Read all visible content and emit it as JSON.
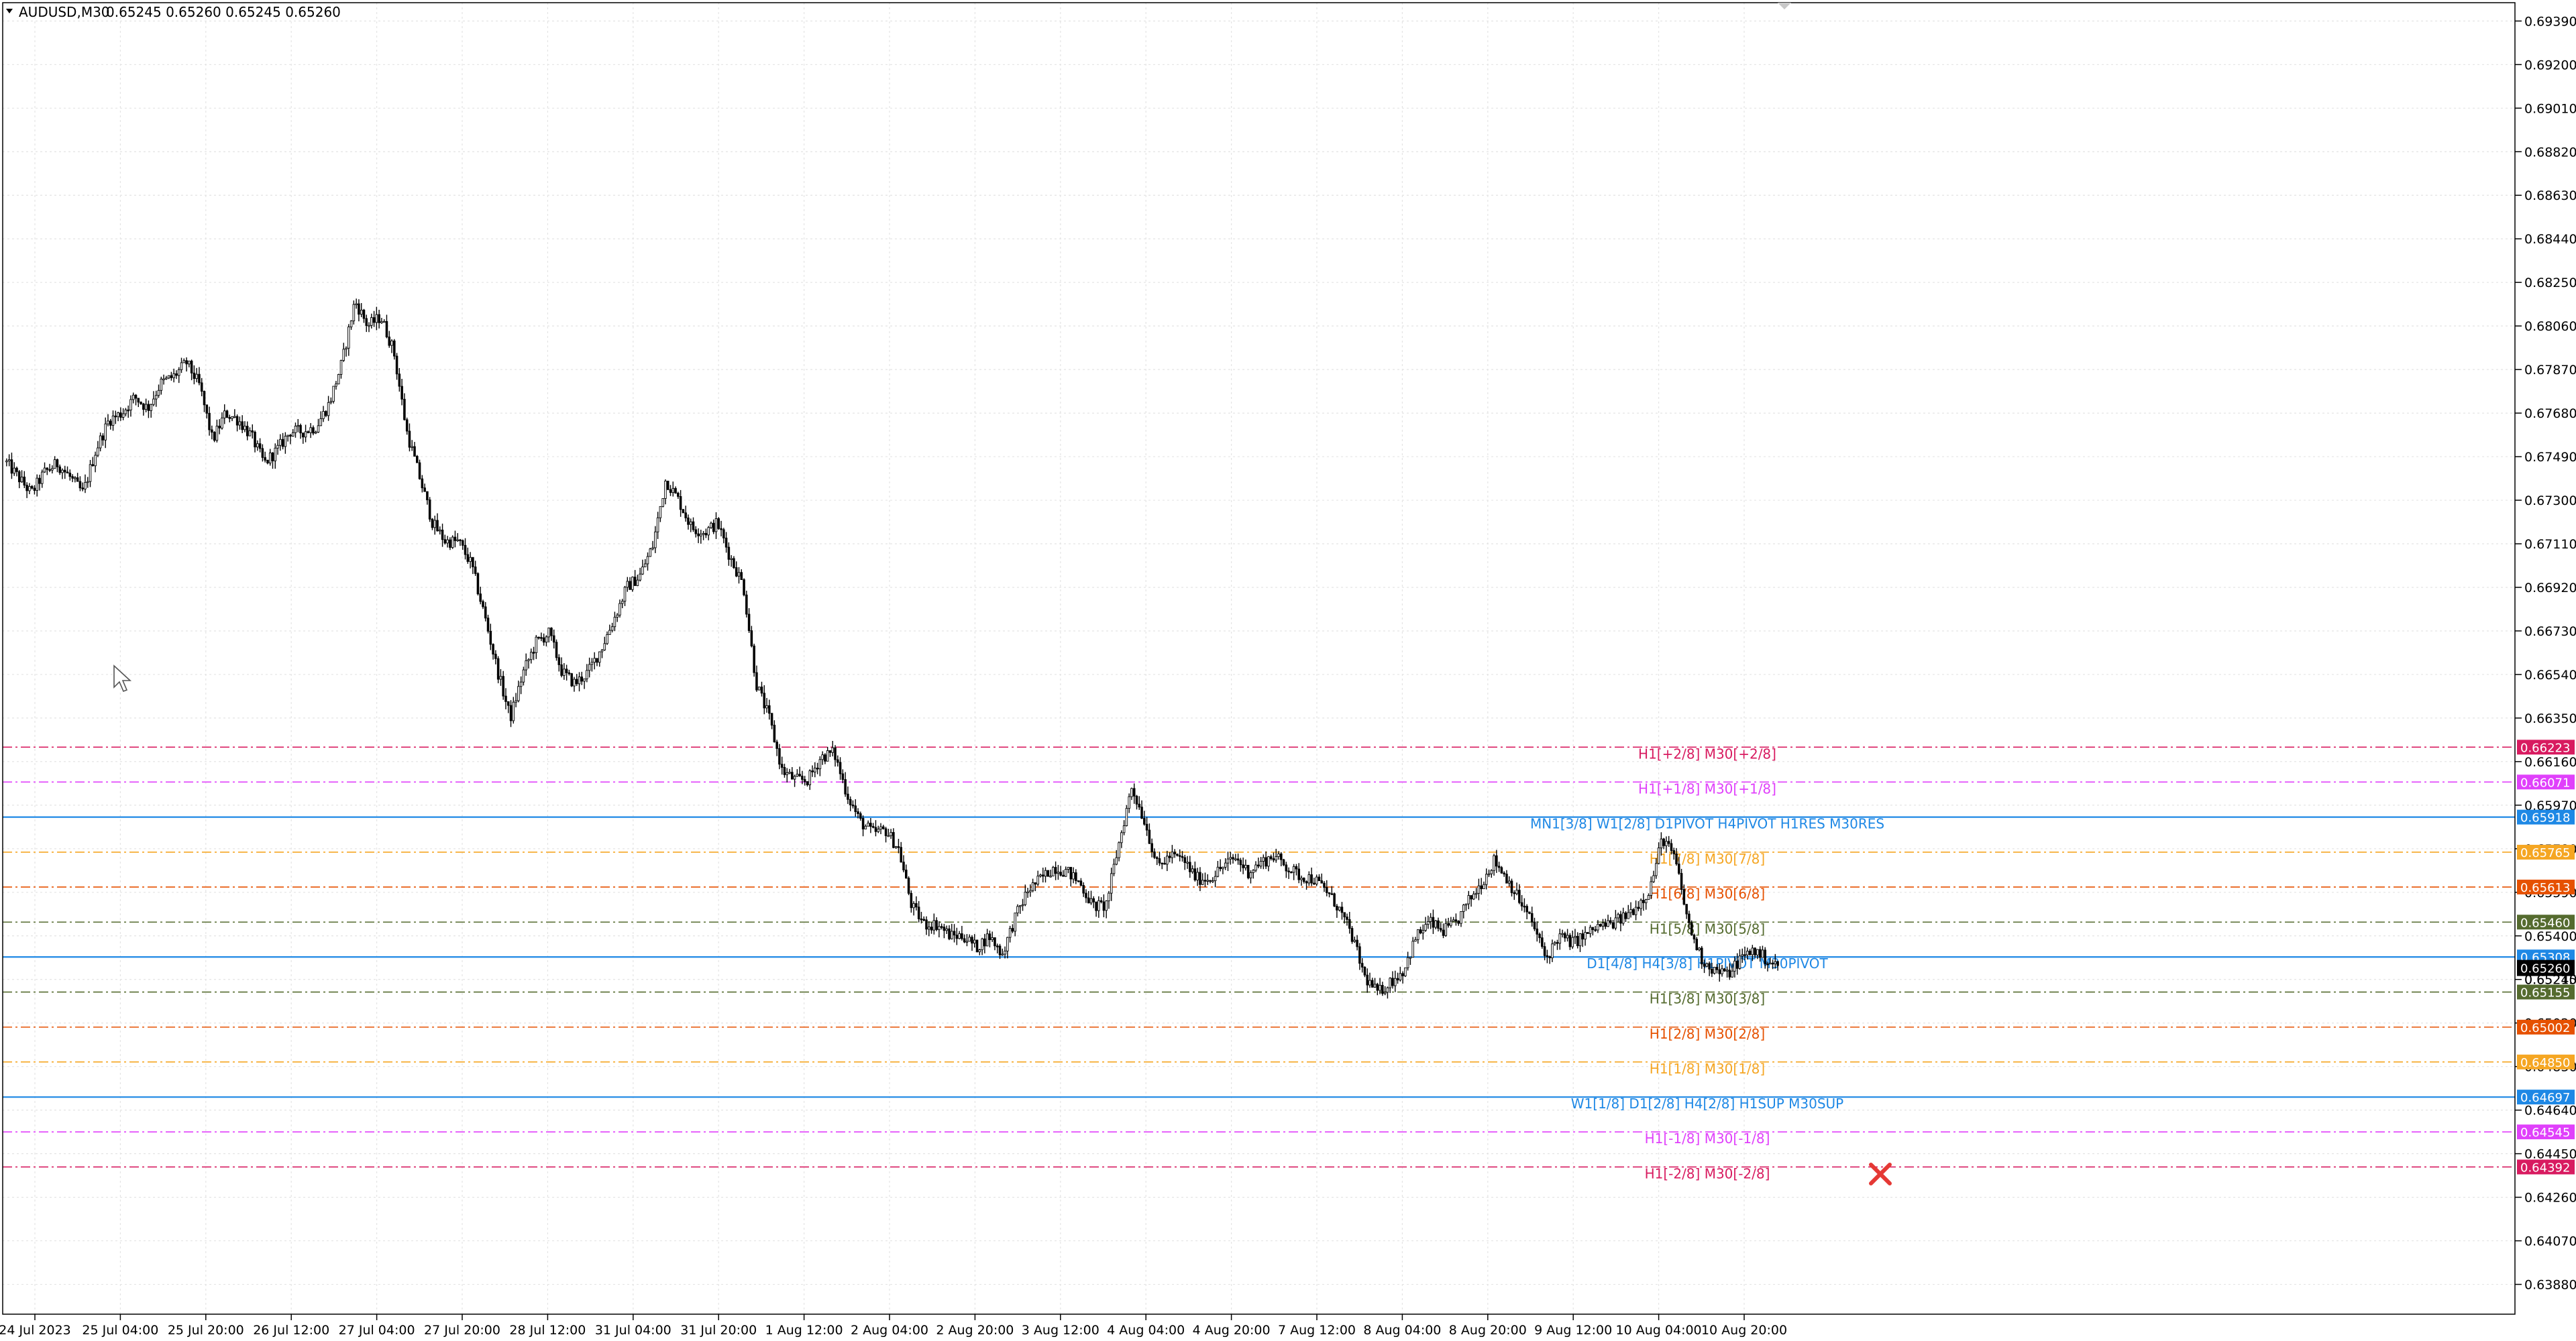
{
  "header": {
    "symbol": "AUDUSD,M30",
    "ohlc": "0.65245 0.65260 0.65245 0.65260"
  },
  "chart_data": {
    "type": "candlestick",
    "symbol": "AUDUSD",
    "timeframe": "M30",
    "grid": true,
    "y_range": [
      0.6375,
      0.6947
    ],
    "y_ticks": [
      "0.69390",
      "0.69200",
      "0.69010",
      "0.68820",
      "0.68630",
      "0.68440",
      "0.68250",
      "0.68060",
      "0.67870",
      "0.67680",
      "0.67490",
      "0.67300",
      "0.67110",
      "0.66920",
      "0.66730",
      "0.66540",
      "0.66350",
      "0.66160",
      "0.65970",
      "0.65780",
      "0.65590",
      "0.65400",
      "0.65210",
      "0.65020",
      "0.64830",
      "0.64640",
      "0.64450",
      "0.64260",
      "0.64070",
      "0.63880"
    ],
    "x_ticks": [
      "24 Jul 2023",
      "25 Jul 04:00",
      "25 Jul 20:00",
      "26 Jul 12:00",
      "27 Jul 04:00",
      "27 Jul 20:00",
      "28 Jul 12:00",
      "31 Jul 04:00",
      "31 Jul 20:00",
      "1 Aug 12:00",
      "2 Aug 04:00",
      "2 Aug 20:00",
      "3 Aug 12:00",
      "4 Aug 04:00",
      "4 Aug 20:00",
      "7 Aug 12:00",
      "8 Aug 04:00",
      "8 Aug 20:00",
      "9 Aug 12:00",
      "10 Aug 04:00",
      "10 Aug 20:00"
    ],
    "price_path": [
      [
        0,
        0.6747
      ],
      [
        0.5,
        0.674
      ],
      [
        1,
        0.6733
      ],
      [
        1.5,
        0.6742
      ],
      [
        2,
        0.6746
      ],
      [
        2.5,
        0.674
      ],
      [
        3,
        0.6733
      ],
      [
        3.5,
        0.6752
      ],
      [
        4,
        0.6765
      ],
      [
        4.5,
        0.6768
      ],
      [
        5,
        0.6775
      ],
      [
        5.5,
        0.677
      ],
      [
        6,
        0.6781
      ],
      [
        6.5,
        0.6784
      ],
      [
        7,
        0.679
      ],
      [
        7.5,
        0.678
      ],
      [
        8,
        0.6756
      ],
      [
        8.5,
        0.6768
      ],
      [
        9,
        0.6765
      ],
      [
        9.5,
        0.6758
      ],
      [
        10,
        0.6746
      ],
      [
        10.5,
        0.6752
      ],
      [
        11,
        0.676
      ],
      [
        11.5,
        0.676
      ],
      [
        12,
        0.6762
      ],
      [
        12.5,
        0.6772
      ],
      [
        13,
        0.679
      ],
      [
        13.5,
        0.6817
      ],
      [
        14,
        0.6806
      ],
      [
        14.5,
        0.681
      ],
      [
        15,
        0.6795
      ],
      [
        15.5,
        0.676
      ],
      [
        16,
        0.674
      ],
      [
        16.5,
        0.672
      ],
      [
        17,
        0.6712
      ],
      [
        17.5,
        0.6712
      ],
      [
        18,
        0.6702
      ],
      [
        18.5,
        0.668
      ],
      [
        19,
        0.6656
      ],
      [
        19.5,
        0.6635
      ],
      [
        20,
        0.6655
      ],
      [
        20.5,
        0.6668
      ],
      [
        21,
        0.6672
      ],
      [
        21.5,
        0.6655
      ],
      [
        22,
        0.665
      ],
      [
        22.5,
        0.6655
      ],
      [
        23,
        0.6665
      ],
      [
        23.5,
        0.6678
      ],
      [
        24,
        0.6692
      ],
      [
        24.5,
        0.6697
      ],
      [
        25,
        0.671
      ],
      [
        25.5,
        0.6739
      ],
      [
        26,
        0.673
      ],
      [
        26.5,
        0.6718
      ],
      [
        27,
        0.6716
      ],
      [
        27.5,
        0.672
      ],
      [
        28,
        0.6705
      ],
      [
        28.5,
        0.6693
      ],
      [
        29,
        0.665
      ],
      [
        29.5,
        0.6635
      ],
      [
        30,
        0.6612
      ],
      [
        30.5,
        0.6608
      ],
      [
        31,
        0.6608
      ],
      [
        31.5,
        0.6618
      ],
      [
        32,
        0.662
      ],
      [
        32.5,
        0.6602
      ],
      [
        33,
        0.659
      ],
      [
        33.5,
        0.6585
      ],
      [
        34,
        0.6586
      ],
      [
        34.5,
        0.6578
      ],
      [
        35,
        0.6553
      ],
      [
        35.5,
        0.6545
      ],
      [
        36,
        0.6545
      ],
      [
        36.5,
        0.654
      ],
      [
        37,
        0.654
      ],
      [
        37.5,
        0.6535
      ],
      [
        38,
        0.654
      ],
      [
        38.5,
        0.6532
      ],
      [
        39,
        0.6548
      ],
      [
        39.5,
        0.656
      ],
      [
        40,
        0.6565
      ],
      [
        40.5,
        0.657
      ],
      [
        41,
        0.6568
      ],
      [
        41.5,
        0.6563
      ],
      [
        42,
        0.6553
      ],
      [
        42.5,
        0.6553
      ],
      [
        43,
        0.658
      ],
      [
        43.5,
        0.6605
      ],
      [
        44,
        0.659
      ],
      [
        44.5,
        0.657
      ],
      [
        45,
        0.6575
      ],
      [
        45.5,
        0.6573
      ],
      [
        46,
        0.6565
      ],
      [
        46.5,
        0.6565
      ],
      [
        47,
        0.657
      ],
      [
        47.5,
        0.6574
      ],
      [
        48,
        0.6568
      ],
      [
        48.5,
        0.6572
      ],
      [
        49,
        0.6575
      ],
      [
        49.5,
        0.657
      ],
      [
        50,
        0.6566
      ],
      [
        50.5,
        0.6565
      ],
      [
        51,
        0.656
      ],
      [
        51.5,
        0.6552
      ],
      [
        52,
        0.654
      ],
      [
        52.5,
        0.6522
      ],
      [
        53,
        0.6515
      ],
      [
        53.5,
        0.652
      ],
      [
        54,
        0.6525
      ],
      [
        54.5,
        0.654
      ],
      [
        55,
        0.6546
      ],
      [
        55.5,
        0.6542
      ],
      [
        56,
        0.6545
      ],
      [
        56.5,
        0.6555
      ],
      [
        57,
        0.6563
      ],
      [
        57.5,
        0.6573
      ],
      [
        58,
        0.6565
      ],
      [
        58.5,
        0.6555
      ],
      [
        59,
        0.6545
      ],
      [
        59.5,
        0.653
      ],
      [
        60,
        0.654
      ],
      [
        60.5,
        0.6537
      ],
      [
        61,
        0.654
      ],
      [
        61.5,
        0.6544
      ],
      [
        62,
        0.6545
      ],
      [
        62.5,
        0.6548
      ],
      [
        63,
        0.6553
      ],
      [
        63.5,
        0.656
      ],
      [
        64,
        0.6583
      ],
      [
        64.5,
        0.6573
      ],
      [
        65,
        0.6545
      ],
      [
        65.5,
        0.653
      ],
      [
        66,
        0.6525
      ],
      [
        66.5,
        0.6523
      ],
      [
        67,
        0.653
      ],
      [
        67.5,
        0.6534
      ],
      [
        68,
        0.653
      ],
      [
        68.5,
        0.6526
      ]
    ],
    "levels": [
      {
        "label": "H1[+2/8] M30[+2/8]",
        "price": 0.66223,
        "tag": "0.66223",
        "color": "#d81b60",
        "style": "dashdot"
      },
      {
        "label": "H1[+1/8] M30[+1/8]",
        "price": 0.66071,
        "tag": "0.66071",
        "color": "#e040fb",
        "style": "dashdot"
      },
      {
        "label": "MN1[3/8] W1[2/8] D1PIVOT H4PIVOT H1RES M30RES",
        "price": 0.65918,
        "tag": "0.65918",
        "color": "#1e88e5",
        "style": "solid"
      },
      {
        "label": "H1[7/8] M30[7/8]",
        "price": 0.65765,
        "tag": "0.65765",
        "color": "#f5a623",
        "style": "dashdot"
      },
      {
        "label": "H1[6/8] M30[6/8]",
        "price": 0.65613,
        "tag": "0.65613",
        "color": "#e65100",
        "style": "dashdot"
      },
      {
        "label": "H1[5/8] M30[5/8]",
        "price": 0.6546,
        "tag": "0.65460",
        "color": "#556b2f",
        "style": "dashdot"
      },
      {
        "label": "D1[4/8] H4[3/8] H1PIVOT M30PIVOT",
        "price": 0.65308,
        "tag": "0.65308",
        "color": "#1e88e5",
        "style": "solid"
      },
      {
        "label": "H1[3/8] M30[3/8]",
        "price": 0.65155,
        "tag": "0.65155",
        "color": "#556b2f",
        "style": "dashdot"
      },
      {
        "label": "H1[2/8] M30[2/8]",
        "price": 0.65002,
        "tag": "0.65002",
        "color": "#e65100",
        "style": "dashdot"
      },
      {
        "label": "H1[1/8] M30[1/8]",
        "price": 0.6485,
        "tag": "0.64850",
        "color": "#f5a623",
        "style": "dashdot"
      },
      {
        "label": "W1[1/8] D1[2/8] H4[2/8] H1SUP M30SUP",
        "price": 0.64697,
        "tag": "0.64697",
        "color": "#1e88e5",
        "style": "solid"
      },
      {
        "label": "H1[-1/8] M30[-1/8]",
        "price": 0.64545,
        "tag": "0.64545",
        "color": "#e040fb",
        "style": "dashdot"
      },
      {
        "label": "H1[-2/8] M30[-2/8]",
        "price": 0.64392,
        "tag": "0.64392",
        "color": "#d81b60",
        "style": "dashdot"
      }
    ],
    "current_price": 0.6526,
    "current_tags": [
      "0.65245",
      "0.65260"
    ]
  }
}
